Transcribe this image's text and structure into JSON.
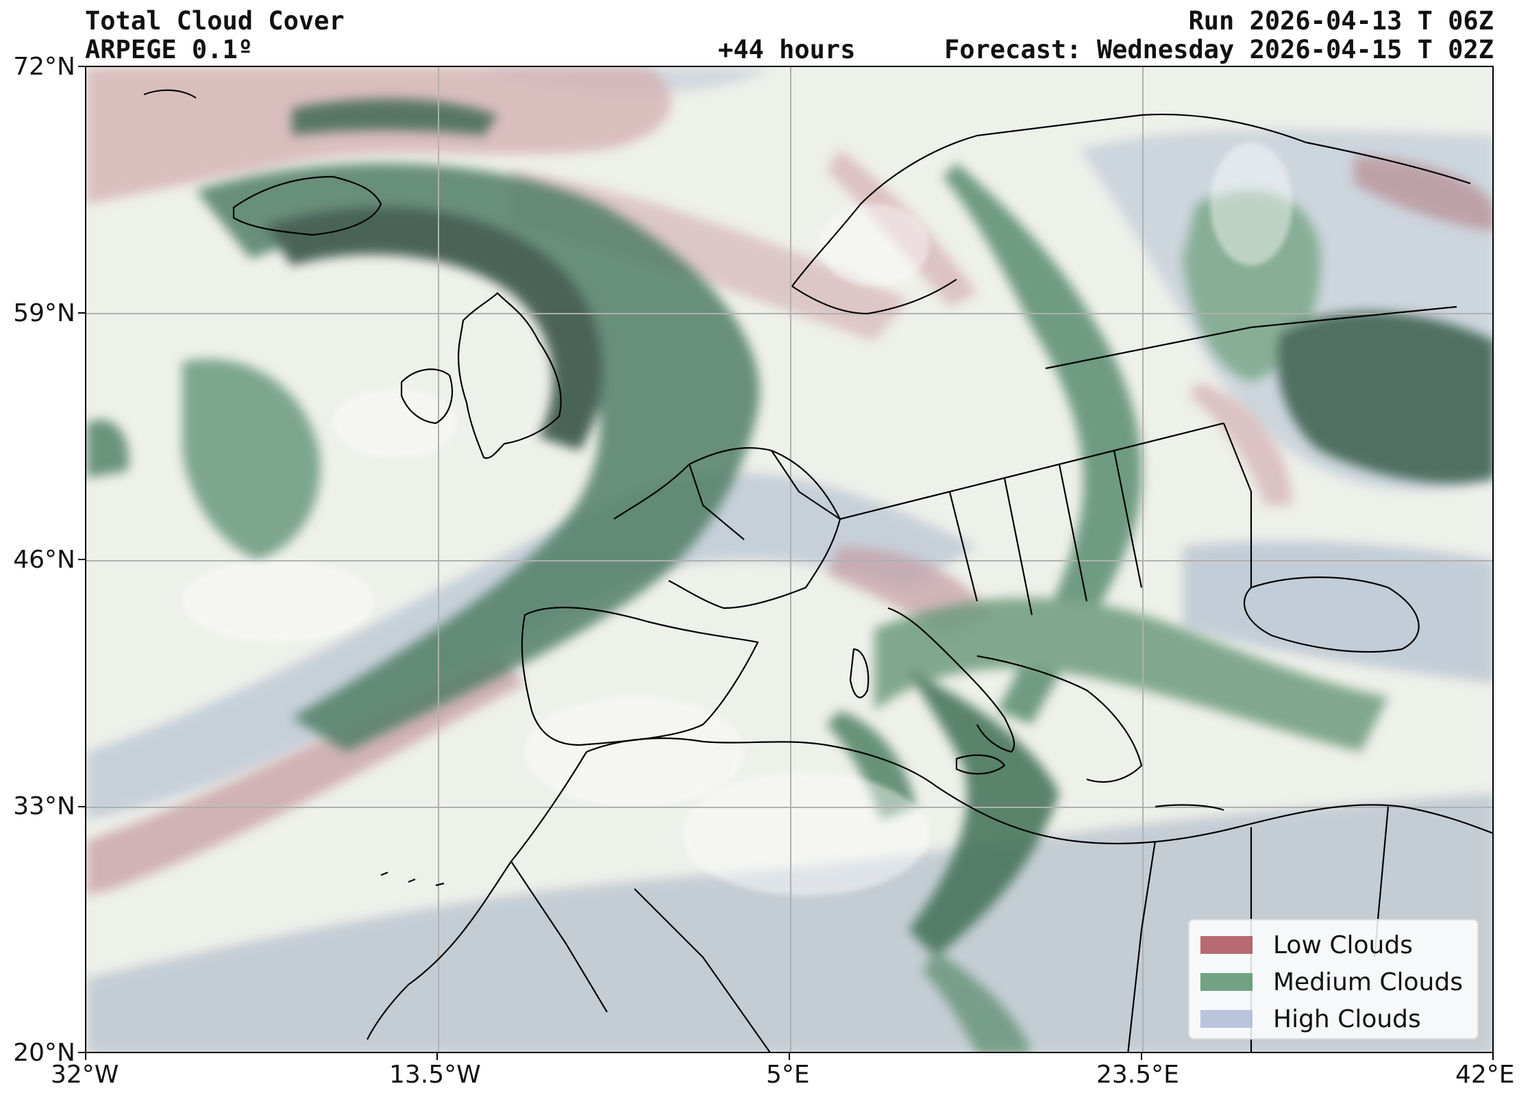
{
  "header": {
    "title": "Total Cloud Cover",
    "model": "ARPEGE 0.1º",
    "lead": "+44 hours",
    "run": "Run 2026-04-13 T 06Z",
    "forecast": "Forecast: Wednesday 2026-04-15 T 02Z"
  },
  "axes": {
    "lat_ticks": [
      "72°N",
      "59°N",
      "46°N",
      "33°N",
      "20°N"
    ],
    "lon_ticks": [
      "32°W",
      "13.5°W",
      "5°E",
      "23.5°E",
      "42°E"
    ]
  },
  "legend": {
    "items": [
      {
        "label": "Low Clouds",
        "color": "#a5464f"
      },
      {
        "label": "Medium Clouds",
        "color": "#4f8c66"
      },
      {
        "label": "High Clouds",
        "color": "#a9b8d6"
      }
    ]
  },
  "colors": {
    "ocean_base": "#eef0ea",
    "low_cloud": "#c08c93",
    "medium_cloud": "#3f7a5a",
    "dark_medium": "#2b4a3e",
    "high_cloud": "#9fb0c7",
    "grid": "#b0b0b0",
    "coast": "#000000"
  }
}
